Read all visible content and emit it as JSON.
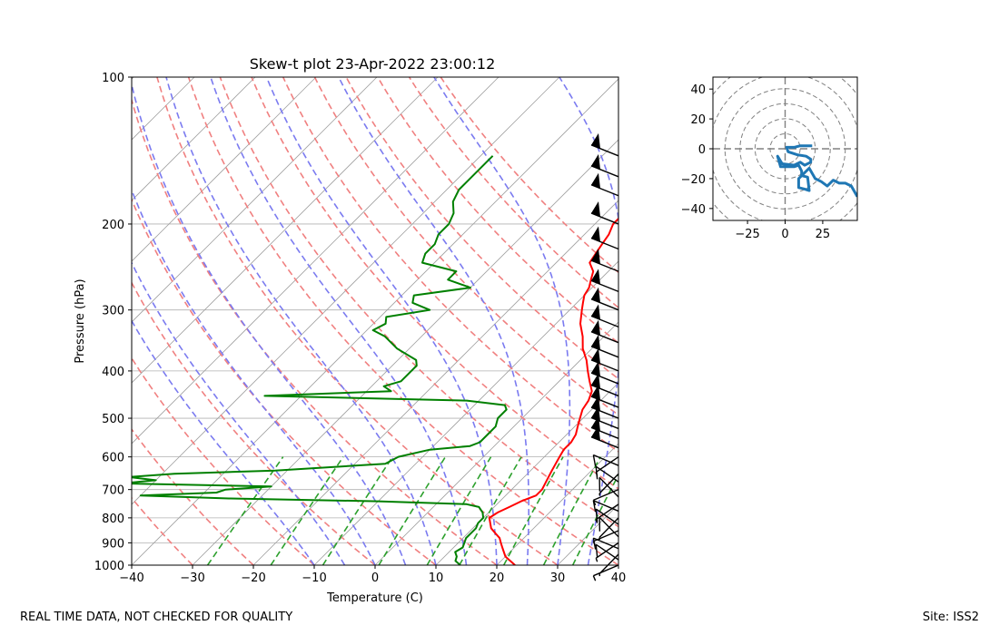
{
  "chart_data": [
    {
      "type": "line",
      "subtype": "skew-t",
      "title": "Skew-t plot 23-Apr-2022 23:00:12",
      "xlabel": "Temperature (C)",
      "ylabel": "Pressure (hPa)",
      "xlim": [
        -40,
        40
      ],
      "ylim": [
        1000,
        100
      ],
      "yscale": "log",
      "xticks": [
        -40,
        -30,
        -20,
        -10,
        0,
        10,
        20,
        30,
        40
      ],
      "yticks": [
        1000,
        900,
        800,
        700,
        600,
        500,
        400,
        300,
        200,
        100
      ],
      "grid": true,
      "series": [
        {
          "color": "#ff0000",
          "p": [
            1000,
            980,
            960,
            940,
            920,
            900,
            880,
            860,
            840,
            820,
            800,
            780,
            760,
            740,
            720,
            700,
            680,
            660,
            640,
            620,
            600,
            580,
            560,
            540,
            520,
            500,
            480,
            460,
            440,
            420,
            400,
            380,
            360,
            340,
            320,
            300,
            290,
            280,
            270,
            260,
            250,
            240,
            230,
            220,
            210,
            200,
            190,
            180,
            170,
            160,
            150,
            145
          ],
          "values": [
            23,
            21.5,
            20,
            19,
            18,
            17,
            16,
            14.5,
            13,
            12,
            11,
            11.5,
            12.5,
            13.5,
            15,
            15,
            14.5,
            14,
            13.5,
            13,
            12.5,
            12,
            12,
            11.5,
            10.5,
            9.5,
            8.5,
            8,
            7,
            5,
            3,
            1,
            -1.5,
            -3.5,
            -6,
            -8,
            -9,
            -10,
            -10.5,
            -11.5,
            -12.5,
            -14.5,
            -15,
            -15.5,
            -16,
            -17,
            -17,
            -17.5,
            -18,
            -19,
            -20.5,
            -21
          ]
        },
        {
          "color": "#008000",
          "p": [
            1000,
            980,
            960,
            940,
            920,
            900,
            880,
            860,
            840,
            820,
            800,
            780,
            760,
            750,
            740,
            730,
            720,
            710,
            700,
            690,
            680,
            670,
            660,
            650,
            640,
            620,
            600,
            580,
            570,
            560,
            540,
            520,
            500,
            480,
            470,
            460,
            450,
            440,
            430,
            420,
            400,
            390,
            380,
            360,
            340,
            330,
            320,
            310,
            300,
            290,
            280,
            270,
            260,
            250,
            240,
            230,
            220,
            210,
            200,
            190,
            180,
            170,
            160,
            150,
            145
          ],
          "values": [
            14,
            12.5,
            12,
            11,
            11.5,
            11,
            10.5,
            10.5,
            10.5,
            10,
            10,
            9,
            7.5,
            5,
            -10,
            -35,
            -50,
            -38,
            -37,
            -30,
            -55,
            -50,
            -55,
            -48,
            -32,
            -15,
            -14,
            -10,
            -4,
            -3,
            -3,
            -3,
            -4,
            -4,
            -5,
            -12,
            -46,
            -26,
            -28,
            -26,
            -26,
            -26,
            -27,
            -32,
            -36,
            -39,
            -38,
            -39,
            -33,
            -37,
            -38,
            -30,
            -35,
            -35,
            -42,
            -43,
            -43,
            -44,
            -44,
            -45,
            -47,
            -48,
            -48,
            -48,
            -48
          ]
        }
      ],
      "background_lines": {
        "isotherms_color": "#a0a0a0",
        "dry_adiabats_color": "#f08080",
        "moist_adiabats_color": "#7b7bf0",
        "mixing_ratio_color": "#2ca02c"
      },
      "wind_barbs": {
        "color": "#000000",
        "x_position_temperature": 40,
        "p": [
          1000,
          975,
          950,
          925,
          900,
          875,
          850,
          825,
          800,
          775,
          750,
          725,
          700,
          675,
          650,
          625,
          600,
          575,
          550,
          525,
          500,
          475,
          450,
          425,
          400,
          375,
          350,
          325,
          300,
          275,
          250,
          225,
          200,
          175,
          160,
          145
        ]
      }
    },
    {
      "type": "line",
      "subtype": "hodograph",
      "xlim": [
        -48,
        48
      ],
      "ylim": [
        -48,
        48
      ],
      "xticks": [
        -25,
        0,
        25
      ],
      "yticks": [
        -40,
        -20,
        0,
        20,
        40
      ],
      "rings": [
        10,
        20,
        30,
        40,
        50,
        60
      ],
      "series": [
        {
          "color": "#1f77b4",
          "u": [
            18,
            16,
            10,
            6,
            1,
            2,
            8,
            14,
            17,
            17,
            13,
            10,
            6,
            -2,
            -5,
            -3,
            1,
            6,
            9,
            11,
            11,
            15,
            16,
            13,
            9,
            9,
            16,
            20,
            24,
            28,
            32,
            36,
            40,
            44,
            48
          ],
          "v": [
            2,
            2,
            2,
            1,
            1,
            -2,
            -4,
            -5,
            -7,
            -9,
            -11,
            -9,
            -11,
            -10,
            -5,
            -12,
            -12,
            -12,
            -11,
            -15,
            -18,
            -19,
            -28,
            -27,
            -26,
            -20,
            -13,
            -20,
            -22,
            -25,
            -21,
            -23,
            -23,
            -25,
            -32
          ]
        }
      ]
    }
  ],
  "footer": {
    "left_note": "REAL TIME DATA, NOT CHECKED FOR QUALITY",
    "site": "Site: ISS2"
  }
}
